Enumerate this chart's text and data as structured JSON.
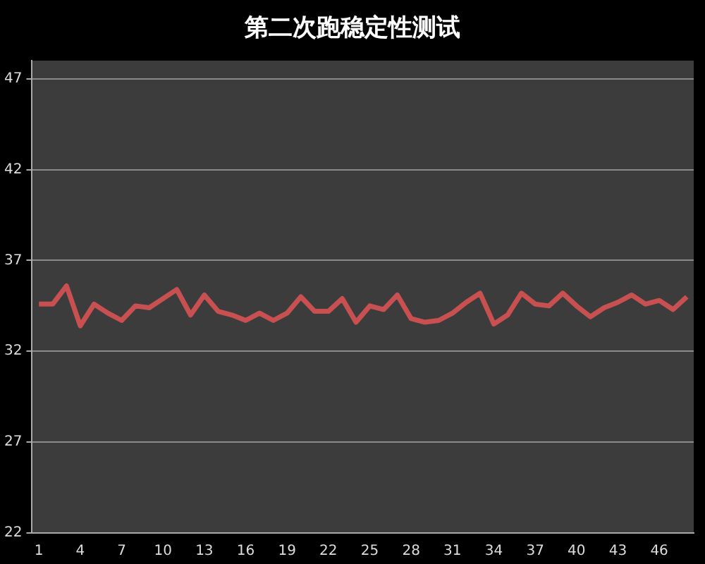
{
  "chart_data": {
    "type": "line",
    "title": "第二次跑稳定性测试",
    "categories": [
      "1",
      null,
      null,
      "4",
      null,
      null,
      "7",
      null,
      null,
      "10",
      null,
      null,
      "13",
      null,
      null,
      "16",
      null,
      null,
      "19",
      null,
      null,
      "22",
      null,
      null,
      "25",
      null,
      null,
      "28",
      null,
      null,
      "31",
      null,
      null,
      "34",
      null,
      null,
      "37",
      null,
      null,
      "40",
      null,
      null,
      "43",
      null,
      null,
      "46",
      null,
      null
    ],
    "series": [
      {
        "color": "#c85050",
        "values": [
          34.6,
          34.6,
          35.6,
          33.4,
          34.6,
          34.1,
          33.7,
          34.5,
          34.4,
          34.9,
          35.4,
          34.0,
          35.1,
          34.2,
          34.0,
          33.7,
          34.1,
          33.7,
          34.1,
          35.0,
          34.2,
          34.2,
          34.9,
          33.6,
          34.5,
          34.3,
          35.1,
          33.8,
          33.6,
          33.7,
          34.1,
          34.7,
          35.2,
          33.5,
          34.0,
          35.2,
          34.6,
          34.5,
          35.2,
          34.5,
          33.9,
          34.4,
          34.7,
          35.1,
          34.6,
          34.8,
          34.3,
          35.0
        ]
      }
    ],
    "ylim": [
      22,
      48
    ],
    "yticks": [
      22,
      27,
      32,
      37,
      42,
      47
    ],
    "grid": "y",
    "legend": false,
    "marker": "none",
    "line_style": "solid"
  }
}
